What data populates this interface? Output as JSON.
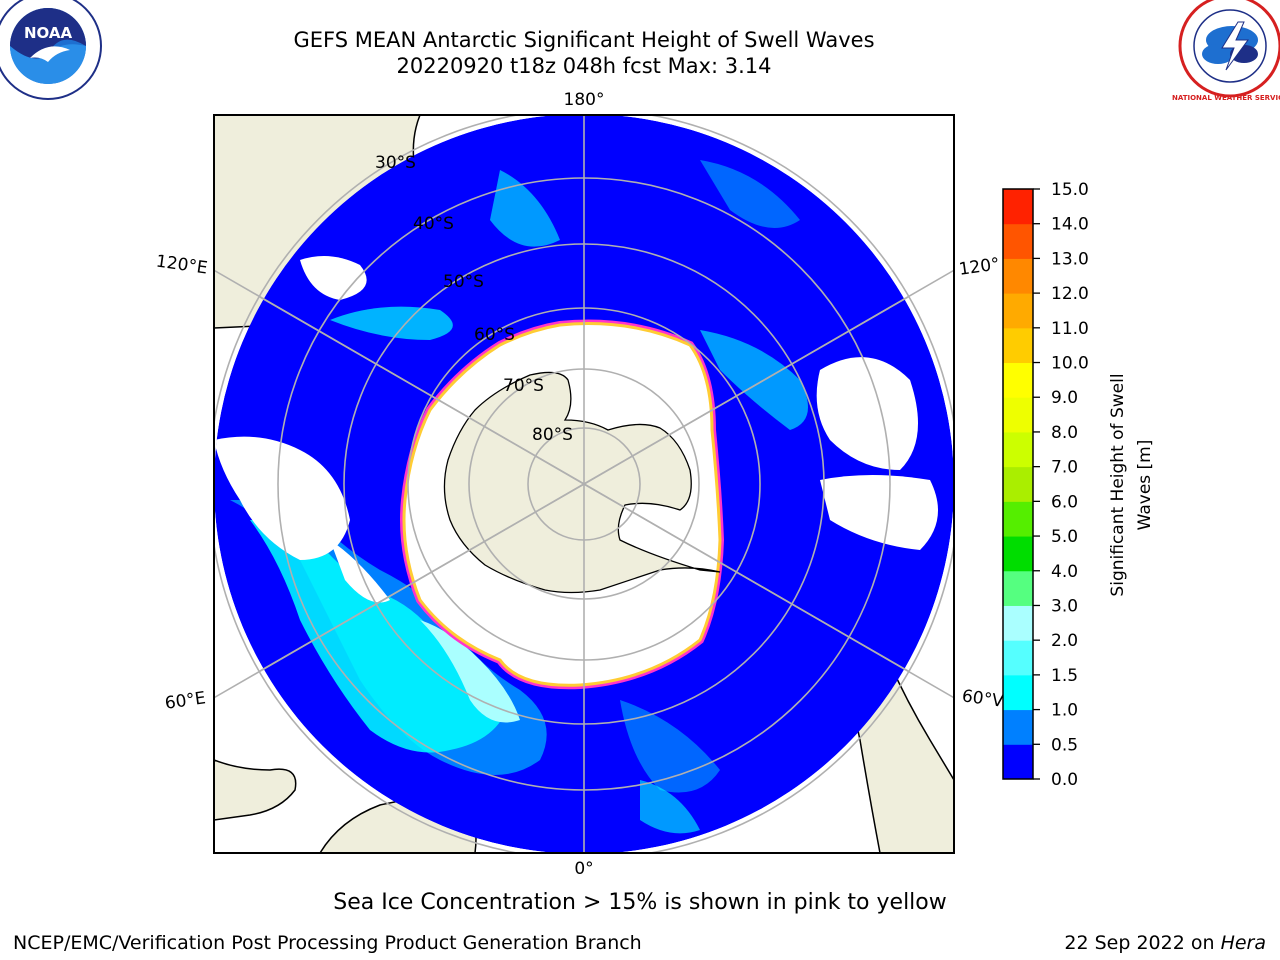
{
  "header": {
    "title_line1": "GEFS MEAN Antarctic Significant Height of Swell Waves",
    "title_line2": "20220920 t18z 048h fcst   Max: 3.14",
    "logos": [
      "noaa-logo",
      "national-weather-service-logo"
    ],
    "noaa_logo_text": "NOAA",
    "nws_logo_text": "NATIONAL WEATHER SERVICE"
  },
  "map": {
    "projection": "south-polar-stereographic",
    "longitude_labels": {
      "top": "180°",
      "left_upper": "120°E",
      "right_upper": "120°",
      "left_lower": "60°E",
      "right_lower": "60°V",
      "bottom": "0°"
    },
    "latitude_labels": [
      "30°S",
      "40°S",
      "50°S",
      "60°S",
      "70°S",
      "80°S"
    ],
    "colors": {
      "land": "#efeedc",
      "ocean_low": "#0000ff",
      "ocean_mid": "#0080ff",
      "ocean_high": "#00ffff",
      "no_data": "#ffffff",
      "ice_edge_outer": "#ff33cc",
      "ice_edge_inner": "#ffcc33",
      "graticule": "#b0b0b0"
    }
  },
  "colorbar": {
    "label": "Significant Height of Swell Waves [m]",
    "label_line1": "Significant Height of Swell",
    "label_line2": "Waves [m]",
    "min": 0.0,
    "max": 15.0,
    "ticks": [
      "15.0",
      "14.0",
      "13.0",
      "12.0",
      "11.0",
      "10.0",
      "9.0",
      "8.0",
      "7.0",
      "6.0",
      "5.0",
      "4.0",
      "3.0",
      "2.0",
      "1.5",
      "1.0",
      "0.5",
      "0.0"
    ],
    "colors_bottom_to_top": [
      "#0000ff",
      "#0080ff",
      "#00ffff",
      "#55ffff",
      "#aaffff",
      "#55ff80",
      "#00dd00",
      "#55ee00",
      "#aaee00",
      "#ccff00",
      "#eeff00",
      "#ffff00",
      "#ffcc00",
      "#ffaa00",
      "#ff8800",
      "#ff5500",
      "#ff2200"
    ]
  },
  "footer": {
    "ice_note": "Sea Ice Concentration > 15% is shown in pink to yellow",
    "credit": "NCEP/EMC/Verification Post Processing Product Generation Branch",
    "date": "22 Sep 2022 on ",
    "machine": "Hera"
  }
}
